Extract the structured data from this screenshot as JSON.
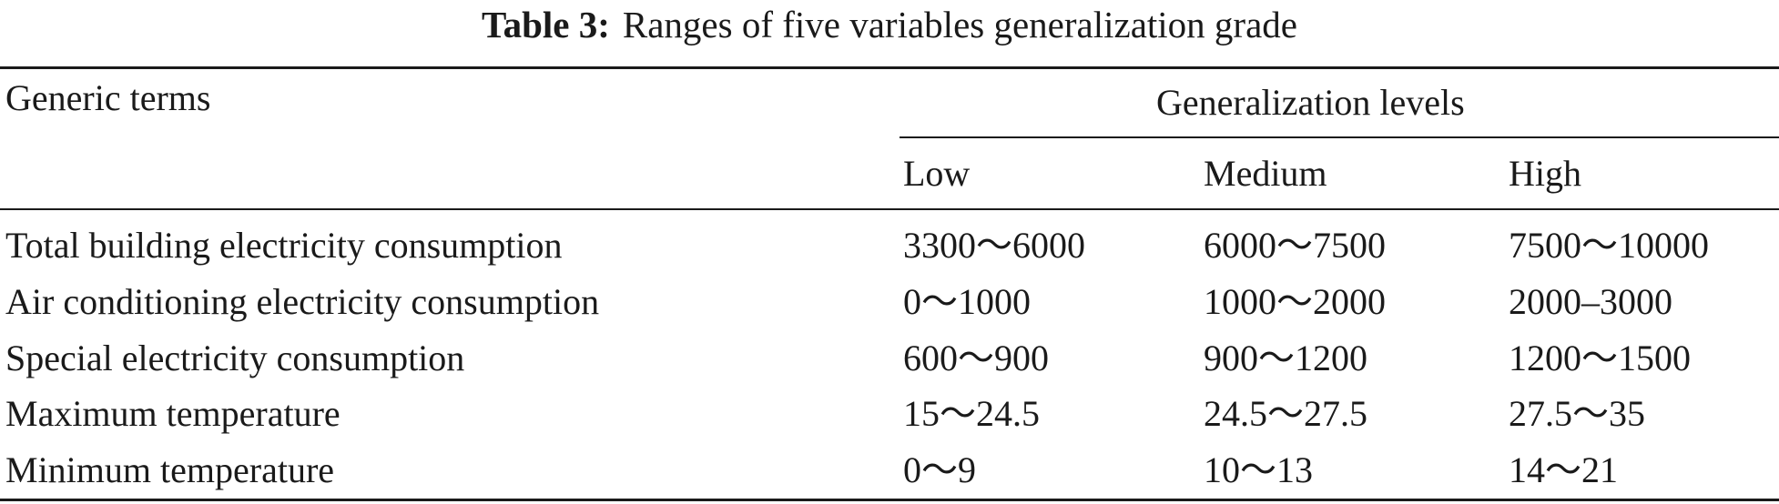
{
  "caption": {
    "label": "Table 3:",
    "text": "Ranges of five variables generalization grade"
  },
  "header": {
    "row_header": "Generic terms",
    "group_header": "Generalization levels",
    "levels": [
      "Low",
      "Medium",
      "High"
    ]
  },
  "rows": [
    {
      "term": "Total building electricity consumption",
      "low": "3300～6000",
      "medium": "6000～7500",
      "high": "7500～10000"
    },
    {
      "term": "Air conditioning electricity consumption",
      "low": "0～1000",
      "medium": "1000～2000",
      "high": "2000–3000"
    },
    {
      "term": "Special electricity consumption",
      "low": "600～900",
      "medium": "900～1200",
      "high": "1200～1500"
    },
    {
      "term": "Maximum temperature",
      "low": "15～24.5",
      "medium": "24.5～27.5",
      "high": "27.5～35"
    },
    {
      "term": "Minimum temperature",
      "low": "0～9",
      "medium": "10～13",
      "high": "14～21"
    }
  ]
}
